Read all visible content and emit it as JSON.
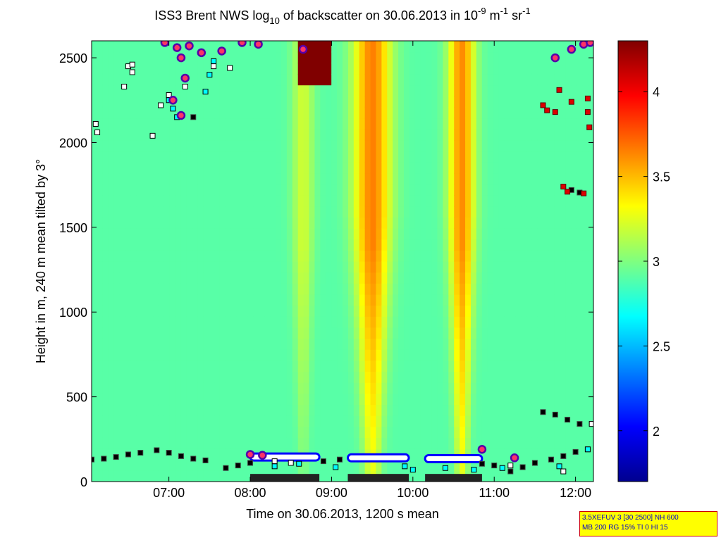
{
  "chart_data": {
    "type": "heatmap",
    "title": {
      "prefix": "ISS3 Brent NWS log",
      "sub": "10",
      "middle": " of backscatter on 30.06.2013 in 10",
      "sup1": "-9",
      "unit1": " m",
      "sup2": "-1",
      "unit2": " sr",
      "sup3": "-1"
    },
    "xlabel": "Time on 30.06.2013, 1200 s mean",
    "ylabel": "Height in m, 240 m mean tilted by 3°",
    "x_ticks": [
      "07:00",
      "08:00",
      "09:00",
      "10:00",
      "11:00",
      "12:00"
    ],
    "x_tick_hours": [
      7,
      8,
      9,
      10,
      11,
      12
    ],
    "xlim_hours": [
      6.05,
      12.22
    ],
    "y_ticks": [
      0,
      500,
      1000,
      1500,
      2000,
      2500
    ],
    "ylim": [
      0,
      2600
    ],
    "colorbar": {
      "ticks": [
        2,
        2.5,
        3,
        3.5,
        4
      ],
      "range": [
        1.7,
        4.3
      ],
      "colormap": "jet"
    },
    "background_level": 2.9,
    "plumes": [
      {
        "center_hour": 9.5,
        "halfwidth_hours": 0.34,
        "peak": 3.65,
        "bottom_value": 3.25
      },
      {
        "center_hour": 10.6,
        "halfwidth_hours": 0.24,
        "peak": 3.62,
        "bottom_value": 3.25
      },
      {
        "center_hour": 8.65,
        "halfwidth_hours": 0.2,
        "peak": 3.2,
        "bottom_value": 3.0
      }
    ],
    "cloud_patches": [
      {
        "from_hour": 8.6,
        "to_hour": 9.0,
        "from_m": 2320,
        "to_m": 2600,
        "value": 4.3
      }
    ],
    "markers": {
      "black_squares": [
        {
          "hour": 6.05,
          "m": 130
        },
        {
          "hour": 6.2,
          "m": 135
        },
        {
          "hour": 6.35,
          "m": 145
        },
        {
          "hour": 6.5,
          "m": 160
        },
        {
          "hour": 6.65,
          "m": 170
        },
        {
          "hour": 6.85,
          "m": 185
        },
        {
          "hour": 7.0,
          "m": 170
        },
        {
          "hour": 7.15,
          "m": 150
        },
        {
          "hour": 7.3,
          "m": 135
        },
        {
          "hour": 7.45,
          "m": 125
        },
        {
          "hour": 7.7,
          "m": 80
        },
        {
          "hour": 7.85,
          "m": 95
        },
        {
          "hour": 8.0,
          "m": 110
        },
        {
          "hour": 8.9,
          "m": 120
        },
        {
          "hour": 9.1,
          "m": 130
        },
        {
          "hour": 10.85,
          "m": 105
        },
        {
          "hour": 11.0,
          "m": 95
        },
        {
          "hour": 11.2,
          "m": 60
        },
        {
          "hour": 11.35,
          "m": 85
        },
        {
          "hour": 11.5,
          "m": 110
        },
        {
          "hour": 11.7,
          "m": 130
        },
        {
          "hour": 11.85,
          "m": 150
        },
        {
          "hour": 12.0,
          "m": 175
        },
        {
          "hour": 12.15,
          "m": 190
        },
        {
          "hour": 11.6,
          "m": 410
        },
        {
          "hour": 11.75,
          "m": 395
        },
        {
          "hour": 11.9,
          "m": 365
        },
        {
          "hour": 12.05,
          "m": 340
        },
        {
          "hour": 12.2,
          "m": 340
        },
        {
          "hour": 7.3,
          "m": 2150
        },
        {
          "hour": 11.95,
          "m": 1720
        },
        {
          "hour": 12.05,
          "m": 1705
        }
      ],
      "white_squares": [
        {
          "hour": 6.1,
          "m": 2110
        },
        {
          "hour": 6.12,
          "m": 2060
        },
        {
          "hour": 6.45,
          "m": 2330
        },
        {
          "hour": 6.5,
          "m": 2450
        },
        {
          "hour": 6.55,
          "m": 2460
        },
        {
          "hour": 6.55,
          "m": 2415
        },
        {
          "hour": 6.8,
          "m": 2040
        },
        {
          "hour": 6.9,
          "m": 2220
        },
        {
          "hour": 7.0,
          "m": 2280
        },
        {
          "hour": 7.2,
          "m": 2330
        },
        {
          "hour": 7.55,
          "m": 2450
        },
        {
          "hour": 7.75,
          "m": 2440
        },
        {
          "hour": 8.3,
          "m": 120
        },
        {
          "hour": 8.5,
          "m": 110
        },
        {
          "hour": 11.2,
          "m": 95
        },
        {
          "hour": 11.85,
          "m": 60
        },
        {
          "hour": 12.2,
          "m": 340
        }
      ],
      "cyan_squares": [
        {
          "hour": 7.0,
          "m": 2250
        },
        {
          "hour": 7.05,
          "m": 2200
        },
        {
          "hour": 7.1,
          "m": 2150
        },
        {
          "hour": 7.45,
          "m": 2300
        },
        {
          "hour": 7.5,
          "m": 2400
        },
        {
          "hour": 7.55,
          "m": 2480
        },
        {
          "hour": 8.3,
          "m": 90
        },
        {
          "hour": 8.6,
          "m": 105
        },
        {
          "hour": 9.05,
          "m": 85
        },
        {
          "hour": 9.9,
          "m": 90
        },
        {
          "hour": 10.0,
          "m": 70
        },
        {
          "hour": 10.4,
          "m": 80
        },
        {
          "hour": 10.75,
          "m": 70
        },
        {
          "hour": 11.1,
          "m": 80
        },
        {
          "hour": 11.8,
          "m": 90
        },
        {
          "hour": 12.15,
          "m": 190
        }
      ],
      "red_squares": [
        {
          "hour": 11.6,
          "m": 2220
        },
        {
          "hour": 11.65,
          "m": 2190
        },
        {
          "hour": 11.75,
          "m": 2180
        },
        {
          "hour": 11.8,
          "m": 2310
        },
        {
          "hour": 11.95,
          "m": 2240
        },
        {
          "hour": 12.15,
          "m": 2180
        },
        {
          "hour": 12.15,
          "m": 2260
        },
        {
          "hour": 12.17,
          "m": 2090
        },
        {
          "hour": 11.9,
          "m": 1710
        },
        {
          "hour": 11.85,
          "m": 1740
        },
        {
          "hour": 12.1,
          "m": 1700
        }
      ],
      "purple_dots": [
        {
          "hour": 6.95,
          "m": 2590
        },
        {
          "hour": 7.1,
          "m": 2560
        },
        {
          "hour": 7.15,
          "m": 2500
        },
        {
          "hour": 7.25,
          "m": 2570
        },
        {
          "hour": 7.4,
          "m": 2530
        },
        {
          "hour": 7.65,
          "m": 2540
        },
        {
          "hour": 7.9,
          "m": 2590
        },
        {
          "hour": 8.1,
          "m": 2580
        },
        {
          "hour": 8.65,
          "m": 2550
        },
        {
          "hour": 7.15,
          "m": 2160
        },
        {
          "hour": 7.05,
          "m": 2250
        },
        {
          "hour": 7.2,
          "m": 2380
        },
        {
          "hour": 11.75,
          "m": 2500
        },
        {
          "hour": 11.95,
          "m": 2550
        },
        {
          "hour": 12.1,
          "m": 2580
        },
        {
          "hour": 12.18,
          "m": 2590
        },
        {
          "hour": 11.25,
          "m": 140
        },
        {
          "hour": 10.85,
          "m": 190
        },
        {
          "hour": 8.0,
          "m": 160
        },
        {
          "hour": 8.15,
          "m": 155
        }
      ]
    },
    "surface_bands": [
      {
        "from_hour": 8.0,
        "to_hour": 8.85,
        "m": 145
      },
      {
        "from_hour": 9.2,
        "to_hour": 9.95,
        "m": 140
      },
      {
        "from_hour": 10.15,
        "to_hour": 10.85,
        "m": 135
      }
    ]
  },
  "status_box": {
    "line1": "3.5XEFUV 3 [30 2500] NH 600",
    "line2": "MB 200 RG 15% TI 0 HI 15"
  }
}
